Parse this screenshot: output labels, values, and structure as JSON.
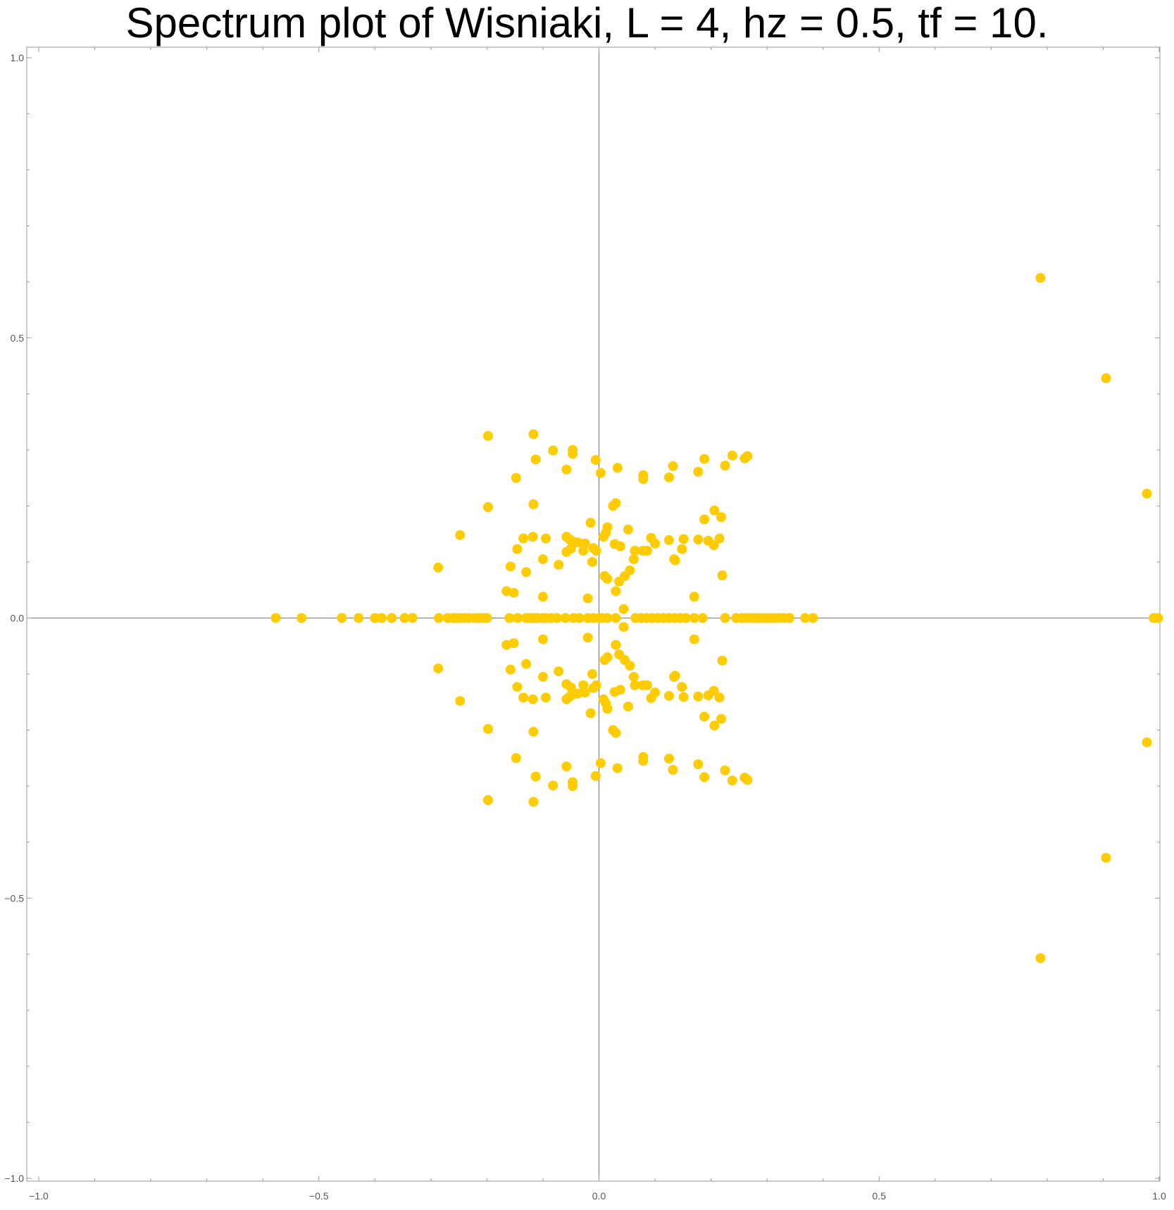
{
  "chart_data": {
    "type": "scatter",
    "title": "Spectrum plot of Wisniaki, L = 4, hz = 0.5, tf = 10.",
    "xlabel": "",
    "ylabel": "",
    "xlim": [
      -1.0,
      1.0
    ],
    "ylim": [
      -1.0,
      1.0
    ],
    "x_ticks": [
      -1.0,
      -0.5,
      0.0,
      0.5,
      1.0
    ],
    "x_tick_labels": [
      "−1.0",
      "−0.5",
      "0.0",
      "0.5",
      "1.0"
    ],
    "y_ticks": [
      -1.0,
      -0.5,
      0.0,
      0.5,
      1.0
    ],
    "y_tick_labels": [
      "−1.0",
      "−0.5",
      "0.0",
      "0.5",
      "1.0"
    ],
    "grid": false,
    "color": "#FFCC00",
    "axis_color": "#777777",
    "frame_color": "#999999",
    "series": [
      {
        "points": [
          [
            -0.577,
            0
          ],
          [
            -0.531,
            0
          ],
          [
            -0.459,
            0
          ],
          [
            -0.429,
            0
          ],
          [
            -0.4,
            0
          ],
          [
            -0.388,
            0
          ],
          [
            -0.37,
            0
          ],
          [
            -0.347,
            0
          ],
          [
            -0.333,
            0
          ],
          [
            -0.286,
            0
          ],
          [
            -0.27,
            0
          ],
          [
            -0.26,
            0
          ],
          [
            -0.255,
            0
          ],
          [
            -0.248,
            0
          ],
          [
            -0.24,
            0
          ],
          [
            -0.232,
            0
          ],
          [
            -0.222,
            0
          ],
          [
            -0.214,
            0
          ],
          [
            -0.206,
            0
          ],
          [
            -0.2,
            0
          ],
          [
            -0.16,
            0
          ],
          [
            -0.145,
            0
          ],
          [
            -0.13,
            0
          ],
          [
            -0.125,
            0
          ],
          [
            -0.12,
            0
          ],
          [
            -0.115,
            0
          ],
          [
            -0.11,
            0
          ],
          [
            -0.1,
            0
          ],
          [
            -0.095,
            0
          ],
          [
            -0.085,
            0
          ],
          [
            -0.075,
            0
          ],
          [
            -0.06,
            0
          ],
          [
            -0.045,
            0
          ],
          [
            -0.035,
            0
          ],
          [
            -0.02,
            0
          ],
          [
            -0.01,
            0
          ],
          [
            0.0,
            0
          ],
          [
            0.005,
            0
          ],
          [
            0.015,
            0
          ],
          [
            0.03,
            0
          ],
          [
            0.065,
            0
          ],
          [
            0.075,
            0
          ],
          [
            0.085,
            0
          ],
          [
            0.095,
            0
          ],
          [
            0.105,
            0
          ],
          [
            0.115,
            0
          ],
          [
            0.125,
            0
          ],
          [
            0.135,
            0
          ],
          [
            0.145,
            0
          ],
          [
            0.155,
            0
          ],
          [
            0.17,
            0
          ],
          [
            0.185,
            0
          ],
          [
            0.225,
            0
          ],
          [
            0.245,
            0
          ],
          [
            0.255,
            0
          ],
          [
            0.262,
            0
          ],
          [
            0.27,
            0
          ],
          [
            0.278,
            0
          ],
          [
            0.285,
            0
          ],
          [
            0.292,
            0
          ],
          [
            0.3,
            0
          ],
          [
            0.307,
            0
          ],
          [
            0.315,
            0
          ],
          [
            0.322,
            0
          ],
          [
            0.33,
            0
          ],
          [
            0.34,
            0
          ],
          [
            0.368,
            0
          ],
          [
            0.382,
            0
          ],
          [
            0.99,
            0
          ],
          [
            0.998,
            0
          ],
          [
            0.788,
            0.607
          ],
          [
            0.788,
            -0.607
          ],
          [
            0.905,
            0.428
          ],
          [
            0.905,
            -0.428
          ],
          [
            0.978,
            0.222
          ],
          [
            0.978,
            -0.222
          ],
          [
            -0.198,
            0.325
          ],
          [
            -0.198,
            -0.325
          ],
          [
            -0.198,
            0.198
          ],
          [
            -0.198,
            -0.198
          ],
          [
            -0.287,
            0.09
          ],
          [
            -0.287,
            -0.09
          ],
          [
            -0.248,
            0.148
          ],
          [
            -0.248,
            -0.148
          ],
          [
            -0.117,
            0.328
          ],
          [
            -0.117,
            -0.328
          ],
          [
            -0.113,
            0.283
          ],
          [
            -0.113,
            -0.283
          ],
          [
            -0.082,
            0.299
          ],
          [
            -0.082,
            -0.299
          ],
          [
            -0.047,
            0.3
          ],
          [
            -0.047,
            -0.3
          ],
          [
            -0.047,
            0.293
          ],
          [
            -0.047,
            -0.293
          ],
          [
            -0.058,
            0.265
          ],
          [
            -0.058,
            -0.265
          ],
          [
            -0.006,
            0.282
          ],
          [
            -0.006,
            -0.282
          ],
          [
            0.003,
            0.259
          ],
          [
            0.003,
            -0.259
          ],
          [
            0.033,
            0.268
          ],
          [
            0.033,
            -0.268
          ],
          [
            0.079,
            0.255
          ],
          [
            0.079,
            -0.255
          ],
          [
            0.079,
            0.248
          ],
          [
            0.079,
            -0.248
          ],
          [
            0.125,
            0.251
          ],
          [
            0.125,
            -0.251
          ],
          [
            0.132,
            0.271
          ],
          [
            0.132,
            -0.271
          ],
          [
            0.177,
            0.261
          ],
          [
            0.177,
            -0.261
          ],
          [
            0.188,
            0.284
          ],
          [
            0.188,
            -0.284
          ],
          [
            0.225,
            0.272
          ],
          [
            0.225,
            -0.272
          ],
          [
            0.238,
            0.29
          ],
          [
            0.238,
            -0.29
          ],
          [
            0.26,
            0.285
          ],
          [
            0.26,
            -0.285
          ],
          [
            0.265,
            0.289
          ],
          [
            0.265,
            -0.289
          ],
          [
            -0.148,
            0.25
          ],
          [
            -0.148,
            -0.25
          ],
          [
            -0.117,
            0.203
          ],
          [
            -0.117,
            -0.203
          ],
          [
            0.025,
            0.2
          ],
          [
            0.025,
            -0.2
          ],
          [
            0.03,
            0.205
          ],
          [
            0.03,
            -0.205
          ],
          [
            0.206,
            0.192
          ],
          [
            0.206,
            -0.192
          ],
          [
            0.188,
            0.176
          ],
          [
            0.188,
            -0.176
          ],
          [
            0.218,
            0.18
          ],
          [
            0.218,
            -0.18
          ],
          [
            -0.015,
            0.17
          ],
          [
            -0.015,
            -0.17
          ],
          [
            0.015,
            0.162
          ],
          [
            0.015,
            -0.162
          ],
          [
            0.052,
            0.158
          ],
          [
            0.052,
            -0.158
          ],
          [
            0.012,
            0.152
          ],
          [
            0.012,
            -0.152
          ],
          [
            0.008,
            0.145
          ],
          [
            0.008,
            -0.145
          ],
          [
            -0.135,
            0.142
          ],
          [
            -0.135,
            -0.142
          ],
          [
            -0.118,
            0.145
          ],
          [
            -0.118,
            -0.145
          ],
          [
            -0.095,
            0.142
          ],
          [
            -0.095,
            -0.142
          ],
          [
            -0.058,
            0.145
          ],
          [
            -0.058,
            -0.145
          ],
          [
            -0.052,
            0.14
          ],
          [
            -0.052,
            -0.14
          ],
          [
            -0.045,
            0.136
          ],
          [
            -0.045,
            -0.136
          ],
          [
            -0.038,
            0.135
          ],
          [
            -0.038,
            -0.135
          ],
          [
            -0.025,
            0.133
          ],
          [
            -0.025,
            -0.133
          ],
          [
            0.028,
            0.132
          ],
          [
            0.028,
            -0.132
          ],
          [
            0.093,
            0.143
          ],
          [
            0.093,
            -0.143
          ],
          [
            0.1,
            0.133
          ],
          [
            0.1,
            -0.133
          ],
          [
            0.125,
            0.139
          ],
          [
            0.125,
            -0.139
          ],
          [
            0.151,
            0.141
          ],
          [
            0.151,
            -0.141
          ],
          [
            0.177,
            0.14
          ],
          [
            0.177,
            -0.14
          ],
          [
            0.195,
            0.138
          ],
          [
            0.195,
            -0.138
          ],
          [
            0.215,
            0.142
          ],
          [
            0.215,
            -0.142
          ],
          [
            0.205,
            0.13
          ],
          [
            0.205,
            -0.13
          ],
          [
            -0.146,
            0.123
          ],
          [
            -0.146,
            -0.123
          ],
          [
            -0.058,
            0.118
          ],
          [
            -0.058,
            -0.118
          ],
          [
            -0.05,
            0.124
          ],
          [
            -0.05,
            -0.124
          ],
          [
            -0.028,
            0.12
          ],
          [
            -0.028,
            -0.12
          ],
          [
            -0.01,
            0.125
          ],
          [
            -0.01,
            -0.125
          ],
          [
            -0.005,
            0.12
          ],
          [
            -0.005,
            -0.12
          ],
          [
            0.038,
            0.128
          ],
          [
            0.038,
            -0.128
          ],
          [
            0.064,
            0.12
          ],
          [
            0.064,
            -0.12
          ],
          [
            0.078,
            0.12
          ],
          [
            0.078,
            -0.12
          ],
          [
            0.086,
            0.12
          ],
          [
            0.086,
            -0.12
          ],
          [
            0.148,
            0.123
          ],
          [
            0.148,
            -0.123
          ],
          [
            -0.1,
            0.105
          ],
          [
            -0.1,
            -0.105
          ],
          [
            -0.072,
            0.095
          ],
          [
            -0.072,
            -0.095
          ],
          [
            -0.012,
            0.1
          ],
          [
            -0.012,
            -0.1
          ],
          [
            0.062,
            0.105
          ],
          [
            0.062,
            -0.105
          ],
          [
            0.134,
            0.105
          ],
          [
            0.134,
            -0.105
          ],
          [
            0.136,
            0.103
          ],
          [
            0.136,
            -0.103
          ],
          [
            -0.158,
            0.092
          ],
          [
            -0.158,
            -0.092
          ],
          [
            -0.13,
            0.082
          ],
          [
            -0.13,
            -0.082
          ],
          [
            0.055,
            0.085
          ],
          [
            0.055,
            -0.085
          ],
          [
            0.046,
            0.075
          ],
          [
            0.046,
            -0.075
          ],
          [
            0.01,
            0.075
          ],
          [
            0.01,
            -0.075
          ],
          [
            0.015,
            0.07
          ],
          [
            0.015,
            -0.07
          ],
          [
            0.036,
            0.065
          ],
          [
            0.036,
            -0.065
          ],
          [
            0.22,
            0.076
          ],
          [
            0.22,
            -0.076
          ],
          [
            -0.165,
            0.048
          ],
          [
            -0.165,
            -0.048
          ],
          [
            -0.152,
            0.045
          ],
          [
            -0.152,
            -0.045
          ],
          [
            0.03,
            0.048
          ],
          [
            0.03,
            -0.048
          ],
          [
            -0.1,
            0.038
          ],
          [
            -0.1,
            -0.038
          ],
          [
            -0.02,
            0.035
          ],
          [
            -0.02,
            -0.035
          ],
          [
            0.17,
            0.038
          ],
          [
            0.17,
            -0.038
          ],
          [
            0.044,
            0.016
          ],
          [
            0.044,
            -0.016
          ]
        ]
      }
    ]
  }
}
